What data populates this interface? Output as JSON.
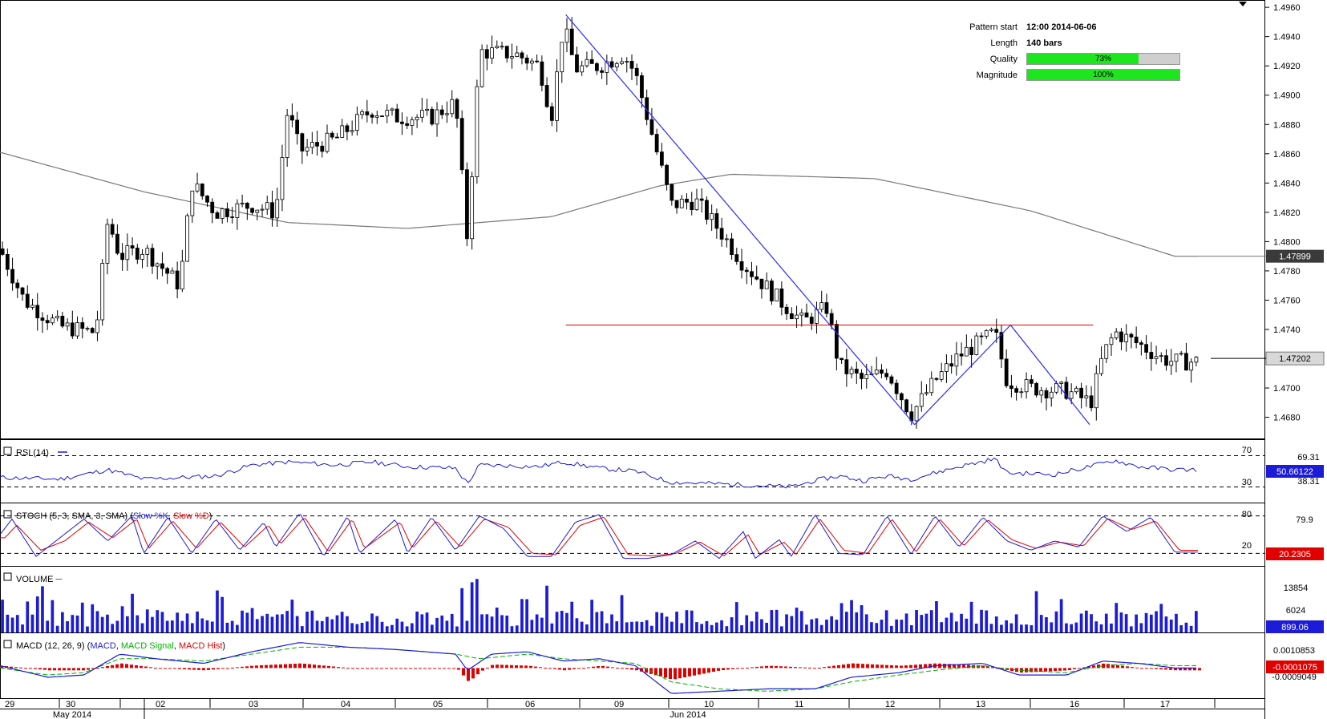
{
  "pattern_info": {
    "start_label": "Pattern start",
    "start_value": "12:00 2014-06-06",
    "length_label": "Length",
    "length_value": "140 bars",
    "quality_label": "Quality",
    "quality_text": "73%",
    "quality_value": 0.73,
    "magnitude_label": "Magnitude",
    "magnitude_text": "100%",
    "magnitude_value": 1.0
  },
  "chart_data": [
    {
      "type": "candlestick",
      "pane": "price",
      "ylim": [
        1.4665,
        1.4965
      ],
      "y_ticks": [
        "1.4960",
        "1.4940",
        "1.4920",
        "1.4900",
        "1.4880",
        "1.4860",
        "1.4840",
        "1.4820",
        "1.4800",
        "1.4780",
        "1.4760",
        "1.4740",
        "1.4720",
        "1.4700",
        "1.4680"
      ],
      "x_day_labels": [
        "29",
        "30",
        "02",
        "03",
        "04",
        "05",
        "06",
        "09",
        "10",
        "11",
        "12",
        "13",
        "16",
        "17"
      ],
      "x_month_labels": [
        "May 2014",
        "Jun 2014"
      ],
      "last_price": "1.47202",
      "moving_average_label": "1.47899",
      "moving_average_anchors": [
        [
          0,
          1.4861
        ],
        [
          0.12,
          1.4834
        ],
        [
          0.24,
          1.4813
        ],
        [
          0.34,
          1.4809
        ],
        [
          0.46,
          1.4817
        ],
        [
          0.55,
          1.4838
        ],
        [
          0.61,
          1.4846
        ],
        [
          0.73,
          1.4843
        ],
        [
          0.86,
          1.4821
        ],
        [
          0.98,
          1.479
        ]
      ],
      "price_anchors": [
        [
          0,
          1.4795
        ],
        [
          0.02,
          1.476
        ],
        [
          0.05,
          1.4742
        ],
        [
          0.08,
          1.4738
        ],
        [
          0.09,
          1.4815
        ],
        [
          0.1,
          1.479
        ],
        [
          0.12,
          1.4795
        ],
        [
          0.15,
          1.477
        ],
        [
          0.16,
          1.484
        ],
        [
          0.18,
          1.482
        ],
        [
          0.21,
          1.4825
        ],
        [
          0.23,
          1.482
        ],
        [
          0.24,
          1.489
        ],
        [
          0.25,
          1.4862
        ],
        [
          0.28,
          1.487
        ],
        [
          0.31,
          1.489
        ],
        [
          0.33,
          1.4885
        ],
        [
          0.36,
          1.4885
        ],
        [
          0.38,
          1.4895
        ],
        [
          0.39,
          1.48
        ],
        [
          0.4,
          1.493
        ],
        [
          0.43,
          1.4928
        ],
        [
          0.45,
          1.492
        ],
        [
          0.46,
          1.4885
        ],
        [
          0.47,
          1.4948
        ],
        [
          0.48,
          1.4918
        ],
        [
          0.5,
          1.492
        ],
        [
          0.52,
          1.4928
        ],
        [
          0.53,
          1.4915
        ],
        [
          0.54,
          1.4885
        ],
        [
          0.56,
          1.4825
        ],
        [
          0.58,
          1.4828
        ],
        [
          0.6,
          1.4808
        ],
        [
          0.62,
          1.4785
        ],
        [
          0.65,
          1.476
        ],
        [
          0.67,
          1.4745
        ],
        [
          0.69,
          1.4755
        ],
        [
          0.7,
          1.4715
        ],
        [
          0.72,
          1.4705
        ],
        [
          0.74,
          1.4712
        ],
        [
          0.76,
          1.4682
        ],
        [
          0.78,
          1.4705
        ],
        [
          0.8,
          1.4722
        ],
        [
          0.83,
          1.4738
        ],
        [
          0.84,
          1.4705
        ],
        [
          0.86,
          1.47
        ],
        [
          0.89,
          1.4698
        ],
        [
          0.91,
          1.469
        ],
        [
          0.92,
          1.4722
        ],
        [
          0.93,
          1.4738
        ],
        [
          0.95,
          1.473
        ],
        [
          0.97,
          1.472
        ],
        [
          0.98,
          1.4718
        ]
      ],
      "resistance_level": 1.4743,
      "pattern_segments": [
        [
          0.472,
          1.4955
        ],
        [
          0.763,
          1.4675
        ],
        [
          0.843,
          1.4743
        ],
        [
          0.909,
          1.4675
        ]
      ]
    },
    {
      "type": "line",
      "pane": "RSI",
      "label": "RSI (14)",
      "levels": [
        "70",
        "30"
      ],
      "right_labels": [
        "69.31",
        "38.31"
      ],
      "current_value": "50.66122",
      "ylim": [
        10,
        90
      ],
      "anchors": [
        [
          0,
          42
        ],
        [
          0.05,
          40
        ],
        [
          0.09,
          52
        ],
        [
          0.12,
          40
        ],
        [
          0.18,
          44
        ],
        [
          0.21,
          58
        ],
        [
          0.24,
          62
        ],
        [
          0.28,
          58
        ],
        [
          0.31,
          62
        ],
        [
          0.34,
          56
        ],
        [
          0.38,
          54
        ],
        [
          0.39,
          34
        ],
        [
          0.4,
          58
        ],
        [
          0.45,
          56
        ],
        [
          0.47,
          62
        ],
        [
          0.5,
          54
        ],
        [
          0.53,
          50
        ],
        [
          0.56,
          36
        ],
        [
          0.6,
          34
        ],
        [
          0.66,
          30
        ],
        [
          0.68,
          38
        ],
        [
          0.7,
          44
        ],
        [
          0.72,
          38
        ],
        [
          0.74,
          44
        ],
        [
          0.76,
          40
        ],
        [
          0.8,
          56
        ],
        [
          0.83,
          66
        ],
        [
          0.84,
          48
        ],
        [
          0.88,
          46
        ],
        [
          0.92,
          60
        ],
        [
          0.93,
          64
        ],
        [
          0.95,
          56
        ],
        [
          0.98,
          52
        ]
      ]
    },
    {
      "type": "line",
      "pane": "STOCH",
      "label": "STOCH (5, 3, SMA, 3, SMA)",
      "series_names": [
        "Slow %K",
        "Slow %D"
      ],
      "levels": [
        "80",
        "20"
      ],
      "right_labels": [
        "79.9",
        "20.2305"
      ],
      "ylim": [
        0,
        100
      ],
      "k_anchors": [
        [
          0,
          50
        ],
        [
          0.01,
          75
        ],
        [
          0.03,
          15
        ],
        [
          0.05,
          45
        ],
        [
          0.07,
          75
        ],
        [
          0.09,
          40
        ],
        [
          0.11,
          80
        ],
        [
          0.12,
          20
        ],
        [
          0.14,
          78
        ],
        [
          0.16,
          20
        ],
        [
          0.18,
          75
        ],
        [
          0.2,
          25
        ],
        [
          0.22,
          70
        ],
        [
          0.23,
          30
        ],
        [
          0.25,
          85
        ],
        [
          0.27,
          15
        ],
        [
          0.29,
          80
        ],
        [
          0.3,
          20
        ],
        [
          0.33,
          75
        ],
        [
          0.34,
          20
        ],
        [
          0.36,
          78
        ],
        [
          0.38,
          25
        ],
        [
          0.4,
          80
        ],
        [
          0.42,
          60
        ],
        [
          0.44,
          15
        ],
        [
          0.46,
          15
        ],
        [
          0.48,
          70
        ],
        [
          0.5,
          82
        ],
        [
          0.52,
          12
        ],
        [
          0.54,
          12
        ],
        [
          0.56,
          18
        ],
        [
          0.58,
          40
        ],
        [
          0.6,
          12
        ],
        [
          0.62,
          55
        ],
        [
          0.63,
          12
        ],
        [
          0.65,
          42
        ],
        [
          0.66,
          15
        ],
        [
          0.68,
          82
        ],
        [
          0.7,
          20
        ],
        [
          0.72,
          18
        ],
        [
          0.74,
          80
        ],
        [
          0.76,
          18
        ],
        [
          0.78,
          80
        ],
        [
          0.8,
          30
        ],
        [
          0.82,
          78
        ],
        [
          0.84,
          40
        ],
        [
          0.86,
          25
        ],
        [
          0.88,
          40
        ],
        [
          0.9,
          30
        ],
        [
          0.92,
          80
        ],
        [
          0.94,
          55
        ],
        [
          0.96,
          78
        ],
        [
          0.98,
          22
        ]
      ],
      "d_anchors": [
        [
          0,
          45
        ],
        [
          0.01,
          65
        ],
        [
          0.03,
          25
        ],
        [
          0.05,
          40
        ],
        [
          0.07,
          70
        ],
        [
          0.09,
          45
        ],
        [
          0.11,
          75
        ],
        [
          0.12,
          28
        ],
        [
          0.14,
          72
        ],
        [
          0.16,
          28
        ],
        [
          0.18,
          70
        ],
        [
          0.2,
          30
        ],
        [
          0.22,
          65
        ],
        [
          0.23,
          35
        ],
        [
          0.25,
          78
        ],
        [
          0.27,
          22
        ],
        [
          0.29,
          75
        ],
        [
          0.3,
          28
        ],
        [
          0.33,
          70
        ],
        [
          0.34,
          28
        ],
        [
          0.36,
          72
        ],
        [
          0.38,
          30
        ],
        [
          0.4,
          75
        ],
        [
          0.42,
          62
        ],
        [
          0.44,
          20
        ],
        [
          0.46,
          18
        ],
        [
          0.48,
          65
        ],
        [
          0.5,
          78
        ],
        [
          0.52,
          18
        ],
        [
          0.54,
          16
        ],
        [
          0.56,
          20
        ],
        [
          0.58,
          38
        ],
        [
          0.6,
          16
        ],
        [
          0.62,
          50
        ],
        [
          0.63,
          18
        ],
        [
          0.65,
          38
        ],
        [
          0.66,
          18
        ],
        [
          0.68,
          75
        ],
        [
          0.7,
          25
        ],
        [
          0.72,
          20
        ],
        [
          0.74,
          75
        ],
        [
          0.76,
          22
        ],
        [
          0.78,
          75
        ],
        [
          0.8,
          32
        ],
        [
          0.82,
          74
        ],
        [
          0.84,
          42
        ],
        [
          0.86,
          28
        ],
        [
          0.88,
          38
        ],
        [
          0.9,
          32
        ],
        [
          0.92,
          76
        ],
        [
          0.94,
          58
        ],
        [
          0.96,
          72
        ],
        [
          0.98,
          25
        ]
      ]
    },
    {
      "type": "bar",
      "pane": "VOLUME",
      "label": "VOLUME",
      "y_ticks": [
        "13854",
        "6024"
      ],
      "current_value": "899.06",
      "ylim": [
        0,
        17000
      ]
    },
    {
      "type": "line",
      "pane": "MACD",
      "label": "MACD (12, 26, 9)",
      "series_names": [
        "MACD",
        "MACD Signal",
        "MACD Hist"
      ],
      "right_labels": [
        "0.0010853",
        "-0.0009049"
      ],
      "current_value": "-0.0001075",
      "ylim": [
        -0.0013,
        0.0015
      ],
      "macd_anchors": [
        [
          0,
          0.0001
        ],
        [
          0.04,
          -0.0004
        ],
        [
          0.07,
          -0.0003
        ],
        [
          0.1,
          0.0006
        ],
        [
          0.13,
          0.0004
        ],
        [
          0.17,
          0.0002
        ],
        [
          0.21,
          0.0007
        ],
        [
          0.25,
          0.0011
        ],
        [
          0.29,
          0.0009
        ],
        [
          0.33,
          0.0008
        ],
        [
          0.38,
          0.0006
        ],
        [
          0.39,
          -0.0001
        ],
        [
          0.41,
          0.0006
        ],
        [
          0.44,
          0.0007
        ],
        [
          0.47,
          0.0003
        ],
        [
          0.5,
          0.0004
        ],
        [
          0.53,
          0.0001
        ],
        [
          0.56,
          -0.0011
        ],
        [
          0.6,
          -0.001
        ],
        [
          0.64,
          -0.0009
        ],
        [
          0.68,
          -0.0009
        ],
        [
          0.71,
          -0.0004
        ],
        [
          0.75,
          -0.0002
        ],
        [
          0.78,
          0.0001
        ],
        [
          0.82,
          0.0002
        ],
        [
          0.85,
          -0.0003
        ],
        [
          0.89,
          -0.0003
        ],
        [
          0.92,
          0.0003
        ],
        [
          0.95,
          0.0002
        ],
        [
          0.98,
          0.0
        ]
      ],
      "signal_anchors": [
        [
          0,
          0.0
        ],
        [
          0.04,
          -0.0003
        ],
        [
          0.07,
          -0.0002
        ],
        [
          0.1,
          0.0004
        ],
        [
          0.13,
          0.0004
        ],
        [
          0.17,
          0.0003
        ],
        [
          0.21,
          0.0006
        ],
        [
          0.25,
          0.0009
        ],
        [
          0.29,
          0.0009
        ],
        [
          0.33,
          0.0008
        ],
        [
          0.38,
          0.0006
        ],
        [
          0.4,
          0.0004
        ],
        [
          0.44,
          0.0006
        ],
        [
          0.47,
          0.0004
        ],
        [
          0.5,
          0.0003
        ],
        [
          0.53,
          0.0002
        ],
        [
          0.56,
          -0.0006
        ],
        [
          0.6,
          -0.0009
        ],
        [
          0.64,
          -0.001
        ],
        [
          0.68,
          -0.0009
        ],
        [
          0.71,
          -0.0006
        ],
        [
          0.75,
          -0.0003
        ],
        [
          0.78,
          -0.0001
        ],
        [
          0.82,
          0.0001
        ],
        [
          0.85,
          -0.0001
        ],
        [
          0.89,
          -0.0002
        ],
        [
          0.92,
          0.0001
        ],
        [
          0.95,
          0.0002
        ],
        [
          0.98,
          0.0001
        ]
      ]
    }
  ]
}
